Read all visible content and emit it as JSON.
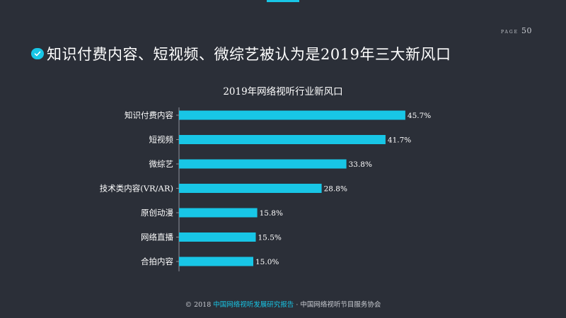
{
  "page": {
    "label": "PAGE",
    "number": "50"
  },
  "headline": "知识付费内容、短视频、微综艺被认为是2019年三大新风口",
  "footer": {
    "copyright": "© 2018",
    "report": "中国网络视听发展研究报告",
    "separator": "·",
    "org": "中国网络视听节目服务协会"
  },
  "colors": {
    "background": "#2b2f38",
    "bar": "#18c6e6",
    "text": "#ffffff"
  },
  "icons": {
    "headline": "check-icon"
  },
  "chart_data": {
    "type": "bar",
    "orientation": "horizontal",
    "title": "2019年网络视听行业新风口",
    "xlabel": "",
    "ylabel": "",
    "xlim": [
      0,
      50
    ],
    "grid": false,
    "categories": [
      "知识付费内容",
      "短视频",
      "微综艺",
      "技术类内容(VR/AR)",
      "原创动漫",
      "网络直播",
      "合拍内容"
    ],
    "values": [
      45.7,
      41.7,
      33.8,
      28.8,
      15.8,
      15.5,
      15.0
    ],
    "value_labels": [
      "45.7%",
      "41.7%",
      "33.8%",
      "28.8%",
      "15.8%",
      "15.5%",
      "15.0%"
    ]
  }
}
